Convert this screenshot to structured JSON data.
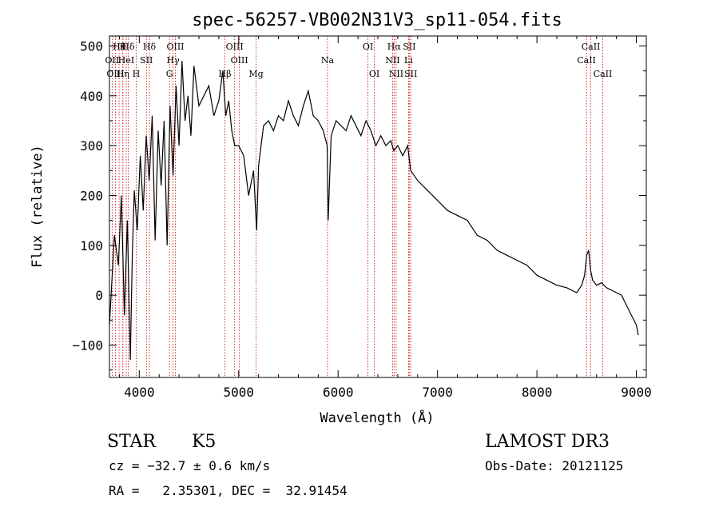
{
  "chart_data": {
    "type": "line",
    "title": "spec-56257-VB002N31V3_sp11-054.fits",
    "xlabel": "Wavelength (Å)",
    "ylabel": "Flux (relative)",
    "xlim": [
      3700,
      9100
    ],
    "ylim": [
      -165,
      520
    ],
    "x_ticks": [
      4000,
      5000,
      6000,
      7000,
      8000,
      9000
    ],
    "x_tick_labels": [
      "4000",
      "5000",
      "6000",
      "7000",
      "8000",
      "9000"
    ],
    "y_ticks": [
      -100,
      0,
      100,
      200,
      300,
      400,
      500
    ],
    "y_tick_labels": [
      "−100",
      "0",
      "100",
      "200",
      "300",
      "400",
      "500"
    ],
    "grid": false,
    "line_color": "#000000",
    "marker_color": "#cc0000",
    "series": [
      {
        "x": [
          3700,
          3750,
          3790,
          3820,
          3850,
          3880,
          3910,
          3930,
          3950,
          3980,
          4010,
          4040,
          4070,
          4100,
          4130,
          4160,
          4190,
          4220,
          4250,
          4280,
          4310,
          4340,
          4370,
          4400,
          4430,
          4460,
          4490,
          4520,
          4550,
          4600,
          4650,
          4700,
          4750,
          4800,
          4840,
          4870,
          4900,
          4930,
          4960,
          5000,
          5050,
          5100,
          5150,
          5180,
          5200,
          5250,
          5300,
          5350,
          5400,
          5450,
          5500,
          5550,
          5600,
          5650,
          5700,
          5750,
          5800,
          5850,
          5890,
          5900,
          5930,
          5980,
          6030,
          6080,
          6130,
          6180,
          6230,
          6280,
          6330,
          6380,
          6430,
          6480,
          6530,
          6560,
          6600,
          6650,
          6700,
          6730,
          6800,
          6900,
          7000,
          7100,
          7200,
          7300,
          7400,
          7500,
          7600,
          7700,
          7800,
          7900,
          8000,
          8100,
          8200,
          8300,
          8400,
          8450,
          8480,
          8500,
          8520,
          8540,
          8560,
          8600,
          8650,
          8700,
          8750,
          8800,
          8850,
          8900,
          8950,
          9000,
          9020
        ],
        "y": [
          -60,
          120,
          60,
          200,
          -40,
          150,
          -130,
          80,
          210,
          130,
          280,
          170,
          320,
          230,
          360,
          110,
          330,
          220,
          350,
          100,
          380,
          240,
          420,
          300,
          470,
          350,
          400,
          320,
          460,
          380,
          400,
          420,
          360,
          390,
          450,
          360,
          390,
          330,
          300,
          300,
          280,
          200,
          250,
          130,
          260,
          340,
          350,
          330,
          360,
          350,
          390,
          360,
          340,
          380,
          410,
          360,
          350,
          330,
          300,
          150,
          320,
          350,
          340,
          330,
          360,
          340,
          320,
          350,
          330,
          300,
          320,
          300,
          310,
          290,
          300,
          280,
          300,
          250,
          230,
          210,
          190,
          170,
          160,
          150,
          120,
          110,
          90,
          80,
          70,
          60,
          40,
          30,
          20,
          15,
          5,
          20,
          40,
          80,
          90,
          50,
          30,
          20,
          25,
          15,
          10,
          5,
          0,
          -20,
          -40,
          -60,
          -80
        ]
      }
    ],
    "line_markers": [
      {
        "wl": 3797,
        "label": "Hθ",
        "row": 0
      },
      {
        "wl": 3835,
        "label": "K",
        "row": 0
      },
      {
        "wl": 3889,
        "label": "Hδ",
        "row": 0
      },
      {
        "wl": 3727,
        "label": "OII",
        "row": 1
      },
      {
        "wl": 3869,
        "label": "HeI",
        "row": 1
      },
      {
        "wl": 4072,
        "label": "SII",
        "row": 1
      },
      {
        "wl": 3760,
        "label": "OIII",
        "row": 2
      },
      {
        "wl": 3835,
        "label": "Hη",
        "row": 2
      },
      {
        "wl": 3970,
        "label": "H",
        "row": 2
      },
      {
        "wl": 4102,
        "label": "Hδ",
        "row": 0
      },
      {
        "wl": 4363,
        "label": "OIII",
        "row": 0
      },
      {
        "wl": 4340,
        "label": "Hγ",
        "row": 1
      },
      {
        "wl": 4304,
        "label": "G",
        "row": 2
      },
      {
        "wl": 4959,
        "label": "OIII",
        "row": 0
      },
      {
        "wl": 5007,
        "label": "OIII",
        "row": 1
      },
      {
        "wl": 4861,
        "label": "Hβ",
        "row": 2
      },
      {
        "wl": 5175,
        "label": "Mg",
        "row": 2
      },
      {
        "wl": 5893,
        "label": "Na",
        "row": 1
      },
      {
        "wl": 6300,
        "label": "OI",
        "row": 0
      },
      {
        "wl": 6364,
        "label": "OI",
        "row": 2
      },
      {
        "wl": 6563,
        "label": "Hα",
        "row": 0
      },
      {
        "wl": 6716,
        "label": "SII",
        "row": 0
      },
      {
        "wl": 6548,
        "label": "NII",
        "row": 1
      },
      {
        "wl": 6708,
        "label": "Li",
        "row": 1
      },
      {
        "wl": 6584,
        "label": "NII",
        "row": 2
      },
      {
        "wl": 6731,
        "label": "SII",
        "row": 2
      },
      {
        "wl": 8542,
        "label": "CaII",
        "row": 0
      },
      {
        "wl": 8498,
        "label": "CaII",
        "row": 1
      },
      {
        "wl": 8662,
        "label": "CaII",
        "row": 2
      }
    ]
  },
  "info": {
    "class_label": "STAR",
    "subclass": "K5",
    "survey": "LAMOST DR3",
    "cz": "cz = −32.7 ± 0.6 km/s",
    "obs_date": "Obs-Date: 20121125",
    "coords": "RA =   2.35301, DEC =  32.91454"
  }
}
